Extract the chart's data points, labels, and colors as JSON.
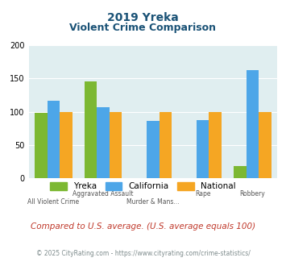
{
  "title_line1": "2019 Yreka",
  "title_line2": "Violent Crime Comparison",
  "categories": [
    "All Violent Crime",
    "Aggravated Assault",
    "Murder & Mans...",
    "Rape",
    "Robbery"
  ],
  "x_labels_top": [
    "",
    "Aggravated Assault",
    "",
    "Rape",
    "Robbery"
  ],
  "x_labels_bot": [
    "All Violent Crime",
    "",
    "Murder & Mans...",
    "",
    ""
  ],
  "yreka": [
    98,
    145,
    0,
    0,
    18
  ],
  "california": [
    117,
    107,
    86,
    87,
    162
  ],
  "national": [
    100,
    100,
    100,
    100,
    100
  ],
  "yreka_color": "#7cb832",
  "california_color": "#4da6e8",
  "national_color": "#f5a623",
  "bg_color": "#e0eef0",
  "ylim": [
    0,
    200
  ],
  "yticks": [
    0,
    50,
    100,
    150,
    200
  ],
  "footer_text": "Compared to U.S. average. (U.S. average equals 100)",
  "copyright_text": "© 2025 CityRating.com - https://www.cityrating.com/crime-statistics/",
  "title_color": "#1a5276",
  "footer_color": "#c0392b",
  "copyright_color": "#7f8c8d"
}
